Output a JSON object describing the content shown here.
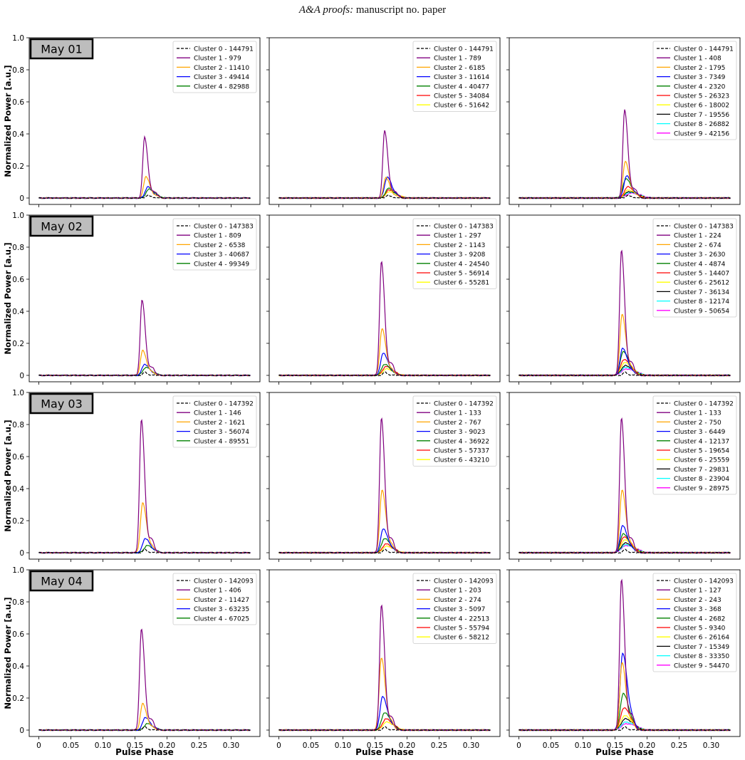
{
  "header": {
    "journal": "A&A proofs:",
    "manuscript": "manuscript no. paper"
  },
  "chart_data": {
    "type": "line",
    "ylabel": "Normalized Power [a.u.]",
    "xlabel": "Pulse Phase",
    "xlim": [
      -0.015,
      0.345
    ],
    "ylim": [
      -0.04,
      1.0
    ],
    "x_ticks": [
      0,
      0.05,
      0.1,
      0.15,
      0.2,
      0.25,
      0.3
    ],
    "x_tick_labels": [
      "0",
      "0.05",
      "0.10",
      "0.15",
      "0.20",
      "0.25",
      "0.30"
    ],
    "y_ticks": [
      0,
      0.2,
      0.4,
      0.6,
      0.8,
      1.0
    ],
    "y_tick_labels": [
      "0",
      "0.2",
      "0.4",
      "0.6",
      "0.8",
      "1.0"
    ],
    "grid": false,
    "legend_position": "top-right",
    "series_colors": [
      "#000000",
      "#800080",
      "#ffa500",
      "#0000ff",
      "#008000",
      "#ff0000",
      "#ffff00",
      "#000000",
      "#00ffff",
      "#ff00ff"
    ],
    "rows": [
      {
        "label": "May 01",
        "panels": [
          {
            "legend": [
              "Cluster 0 - 144791",
              "Cluster 1 - 979",
              "Cluster 2 - 11410",
              "Cluster 3 - 49414",
              "Cluster 4 - 82988"
            ],
            "peaks": [
              0.02,
              0.38,
              0.135,
              0.07,
              0.055
            ],
            "centers": [
              0.17,
              0.165,
              0.167,
              0.17,
              0.172
            ]
          },
          {
            "legend": [
              "Cluster 0 - 144791",
              "Cluster 1 - 789",
              "Cluster 2 - 6185",
              "Cluster 3 - 11614",
              "Cluster 4 - 40477",
              "Cluster 5 - 34084",
              "Cluster 6 - 51642"
            ],
            "peaks": [
              0.02,
              0.42,
              0.13,
              0.13,
              0.06,
              0.05,
              0.04
            ],
            "centers": [
              0.17,
              0.165,
              0.167,
              0.169,
              0.171,
              0.172,
              0.173
            ]
          },
          {
            "legend": [
              "Cluster 0 - 144791",
              "Cluster 1 - 408",
              "Cluster 2 - 1795",
              "Cluster 3 - 7349",
              "Cluster 4 - 2320",
              "Cluster 5 - 26323",
              "Cluster 6 - 18002",
              "Cluster 7 - 19556",
              "Cluster 8 - 26882",
              "Cluster 9 - 42156"
            ],
            "peaks": [
              0.02,
              0.55,
              0.23,
              0.14,
              0.12,
              0.07,
              0.05,
              0.04,
              0.035,
              0.03
            ],
            "centers": [
              0.17,
              0.165,
              0.166,
              0.168,
              0.167,
              0.17,
              0.171,
              0.172,
              0.173,
              0.175
            ]
          }
        ]
      },
      {
        "label": "May 02",
        "panels": [
          {
            "legend": [
              "Cluster 0 - 147383",
              "Cluster 1 - 809",
              "Cluster 2 - 6538",
              "Cluster 3 - 40687",
              "Cluster 4 - 99349"
            ],
            "peaks": [
              0.02,
              0.47,
              0.155,
              0.07,
              0.05
            ],
            "centers": [
              0.165,
              0.161,
              0.162,
              0.165,
              0.167
            ]
          },
          {
            "legend": [
              "Cluster 0 - 147383",
              "Cluster 1 - 297",
              "Cluster 2 - 1143",
              "Cluster 3 - 9208",
              "Cluster 4 - 24540",
              "Cluster 5 - 56914",
              "Cluster 6 - 55281"
            ],
            "peaks": [
              0.02,
              0.71,
              0.29,
              0.14,
              0.07,
              0.055,
              0.04
            ],
            "centers": [
              0.165,
              0.16,
              0.161,
              0.163,
              0.165,
              0.167,
              0.168
            ]
          },
          {
            "legend": [
              "Cluster 0 - 147383",
              "Cluster 1 - 224",
              "Cluster 2 - 674",
              "Cluster 3 - 2630",
              "Cluster 4 - 4874",
              "Cluster 5 - 14407",
              "Cluster 6 - 25612",
              "Cluster 7 - 36134",
              "Cluster 8 - 12174",
              "Cluster 9 - 50654"
            ],
            "peaks": [
              0.02,
              0.78,
              0.38,
              0.17,
              0.15,
              0.1,
              0.08,
              0.06,
              0.05,
              0.04
            ],
            "centers": [
              0.165,
              0.16,
              0.161,
              0.162,
              0.163,
              0.164,
              0.165,
              0.166,
              0.167,
              0.168
            ]
          }
        ]
      },
      {
        "label": "May 03",
        "panels": [
          {
            "legend": [
              "Cluster 0 - 147392",
              "Cluster 1 - 146",
              "Cluster 2 - 1621",
              "Cluster 3 - 56074",
              "Cluster 4 - 89551"
            ],
            "peaks": [
              0.02,
              0.83,
              0.31,
              0.09,
              0.045
            ],
            "centers": [
              0.165,
              0.16,
              0.162,
              0.166,
              0.169
            ]
          },
          {
            "legend": [
              "Cluster 0 - 147392",
              "Cluster 1 - 133",
              "Cluster 2 - 767",
              "Cluster 3 - 9023",
              "Cluster 4 - 36922",
              "Cluster 5 - 57337",
              "Cluster 6 - 43210"
            ],
            "peaks": [
              0.02,
              0.84,
              0.39,
              0.15,
              0.09,
              0.055,
              0.04
            ],
            "centers": [
              0.165,
              0.16,
              0.161,
              0.163,
              0.165,
              0.167,
              0.168
            ]
          },
          {
            "legend": [
              "Cluster 0 - 147392",
              "Cluster 1 - 133",
              "Cluster 2 - 750",
              "Cluster 3 - 6449",
              "Cluster 4 - 12137",
              "Cluster 5 - 19654",
              "Cluster 6 - 25559",
              "Cluster 7 - 29831",
              "Cluster 8 - 23904",
              "Cluster 9 - 28975"
            ],
            "peaks": [
              0.02,
              0.84,
              0.39,
              0.17,
              0.12,
              0.1,
              0.08,
              0.06,
              0.05,
              0.045
            ],
            "centers": [
              0.165,
              0.16,
              0.161,
              0.162,
              0.163,
              0.164,
              0.165,
              0.166,
              0.167,
              0.168
            ]
          }
        ]
      },
      {
        "label": "May 04",
        "panels": [
          {
            "legend": [
              "Cluster 0 - 142093",
              "Cluster 1 - 406",
              "Cluster 2 - 11427",
              "Cluster 3 - 63235",
              "Cluster 4 - 67025"
            ],
            "peaks": [
              0.02,
              0.63,
              0.165,
              0.08,
              0.04
            ],
            "centers": [
              0.165,
              0.16,
              0.162,
              0.166,
              0.169
            ]
          },
          {
            "legend": [
              "Cluster 0 - 142093",
              "Cluster 1 - 203",
              "Cluster 2 - 274",
              "Cluster 3 - 5097",
              "Cluster 4 - 22513",
              "Cluster 5 - 55794",
              "Cluster 6 - 58212"
            ],
            "peaks": [
              0.02,
              0.78,
              0.45,
              0.21,
              0.11,
              0.07,
              0.05
            ],
            "centers": [
              0.165,
              0.16,
              0.16,
              0.162,
              0.165,
              0.167,
              0.168
            ]
          },
          {
            "legend": [
              "Cluster 0 - 142093",
              "Cluster 1 - 127",
              "Cluster 2 - 243",
              "Cluster 3 - 368",
              "Cluster 4 - 2682",
              "Cluster 5 - 9340",
              "Cluster 6 - 26164",
              "Cluster 7 - 15349",
              "Cluster 8 - 33350",
              "Cluster 9 - 54470"
            ],
            "peaks": [
              0.02,
              0.94,
              0.42,
              0.48,
              0.23,
              0.14,
              0.09,
              0.07,
              0.05,
              0.04
            ],
            "centers": [
              0.165,
              0.16,
              0.161,
              0.162,
              0.163,
              0.164,
              0.165,
              0.166,
              0.167,
              0.168
            ]
          }
        ]
      }
    ]
  }
}
